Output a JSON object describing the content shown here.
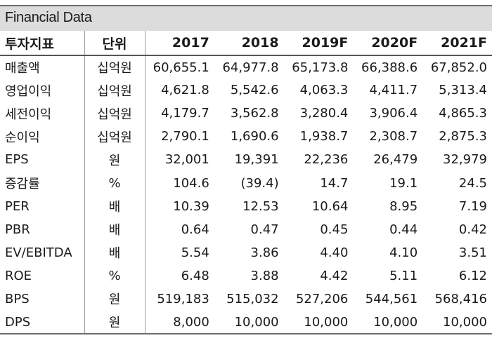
{
  "title": "Financial Data",
  "headers": {
    "indicator": "투자지표",
    "unit": "단위",
    "years": [
      "2017",
      "2018",
      "2019F",
      "2020F",
      "2021F"
    ]
  },
  "rows": [
    {
      "label": "매출액",
      "unit": "십억원",
      "values": [
        "60,655.1",
        "64,977.8",
        "65,173.8",
        "66,388.6",
        "67,852.0"
      ]
    },
    {
      "label": "영업이익",
      "unit": "십억원",
      "values": [
        "4,621.8",
        "5,542.6",
        "4,063.3",
        "4,411.7",
        "5,313.4"
      ]
    },
    {
      "label": "세전이익",
      "unit": "십억원",
      "values": [
        "4,179.7",
        "3,562.8",
        "3,280.4",
        "3,906.4",
        "4,865.3"
      ]
    },
    {
      "label": "순이익",
      "unit": "십억원",
      "values": [
        "2,790.1",
        "1,690.6",
        "1,938.7",
        "2,308.7",
        "2,875.3"
      ]
    },
    {
      "label": "EPS",
      "unit": "원",
      "values": [
        "32,001",
        "19,391",
        "22,236",
        "26,479",
        "32,979"
      ]
    },
    {
      "label": "증감률",
      "unit": "%",
      "values": [
        "104.6",
        "(39.4)",
        "14.7",
        "19.1",
        "24.5"
      ]
    },
    {
      "label": "PER",
      "unit": "배",
      "values": [
        "10.39",
        "12.53",
        "10.64",
        "8.95",
        "7.19"
      ]
    },
    {
      "label": "PBR",
      "unit": "배",
      "values": [
        "0.64",
        "0.47",
        "0.45",
        "0.44",
        "0.42"
      ]
    },
    {
      "label": "EV/EBITDA",
      "unit": "배",
      "values": [
        "5.54",
        "3.86",
        "4.40",
        "4.10",
        "3.51"
      ]
    },
    {
      "label": "ROE",
      "unit": "%",
      "values": [
        "6.48",
        "3.88",
        "4.42",
        "5.11",
        "6.12"
      ]
    },
    {
      "label": "BPS",
      "unit": "원",
      "values": [
        "519,183",
        "515,032",
        "527,206",
        "544,561",
        "568,416"
      ]
    },
    {
      "label": "DPS",
      "unit": "원",
      "values": [
        "8,000",
        "10,000",
        "10,000",
        "10,000",
        "10,000"
      ]
    }
  ]
}
